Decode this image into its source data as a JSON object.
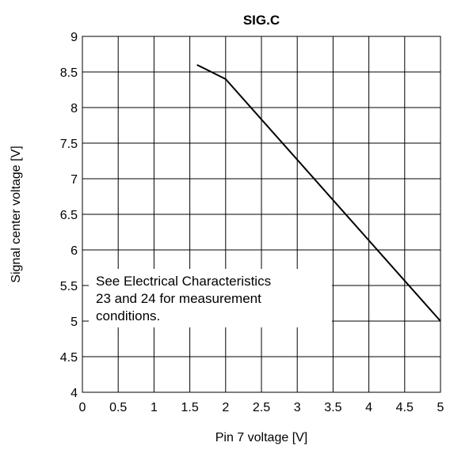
{
  "chart_data": {
    "type": "line",
    "title": "SIG.C",
    "xlabel": "Pin 7 voltage [V]",
    "ylabel": "Signal center voltage [V]",
    "xlim": [
      0,
      5
    ],
    "ylim": [
      4,
      9
    ],
    "x_ticks": [
      "0",
      "0.5",
      "1",
      "1.5",
      "2",
      "2.5",
      "3",
      "3.5",
      "4",
      "4.5",
      "5"
    ],
    "y_ticks": [
      "4",
      "4.5",
      "5",
      "5.5",
      "6",
      "6.5",
      "7",
      "7.5",
      "8",
      "8.5",
      "9"
    ],
    "grid": true,
    "series": [
      {
        "x": [
          1.6,
          2.0,
          5.0
        ],
        "y": [
          8.6,
          8.4,
          5.0
        ]
      }
    ],
    "annotation": {
      "lines": [
        "See Electrical Characteristics",
        "23 and 24 for measurement",
        "conditions."
      ]
    }
  }
}
